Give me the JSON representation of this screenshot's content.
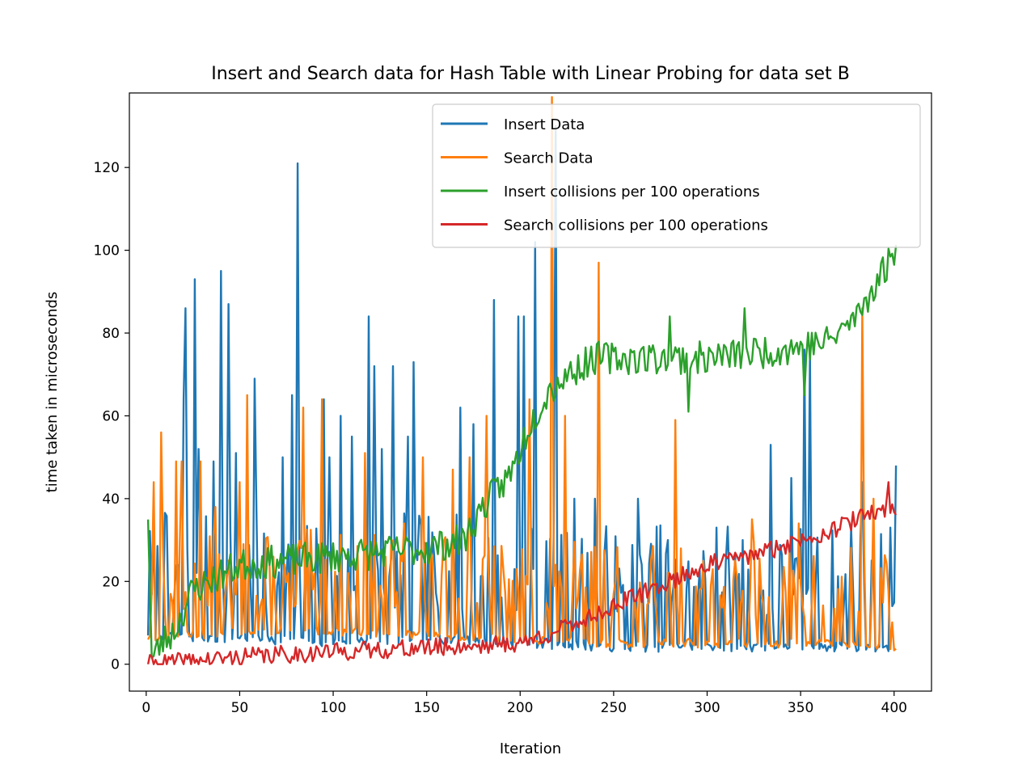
{
  "chart_data": {
    "type": "line",
    "title": "Insert and Search data for Hash Table with Linear Probing for data set B",
    "xlabel": "Iteration",
    "ylabel": "time taken in microseconds",
    "xlim": [
      -9,
      420
    ],
    "ylim": [
      -6.5,
      138
    ],
    "xticks": [
      0,
      50,
      100,
      150,
      200,
      250,
      300,
      350,
      400
    ],
    "yticks": [
      0,
      20,
      40,
      60,
      80,
      100,
      120
    ],
    "grid": false,
    "legend_position": "top-right",
    "series": [
      {
        "name": "Insert Data",
        "color": "#1f77b4",
        "style": "noise",
        "anchors": [
          [
            1,
            6
          ],
          [
            30,
            5
          ],
          [
            60,
            5
          ],
          [
            100,
            4
          ],
          [
            150,
            5
          ],
          [
            200,
            4
          ],
          [
            250,
            3
          ],
          [
            300,
            3
          ],
          [
            350,
            3
          ],
          [
            400,
            3
          ]
        ],
        "noise_amp": 20,
        "seed": 7,
        "spikes": [
          [
            20,
            64
          ],
          [
            21,
            86
          ],
          [
            26,
            93
          ],
          [
            28,
            52
          ],
          [
            36,
            49
          ],
          [
            40,
            95
          ],
          [
            44,
            87
          ],
          [
            48,
            51
          ],
          [
            58,
            69
          ],
          [
            73,
            50
          ],
          [
            78,
            65
          ],
          [
            81,
            121
          ],
          [
            95,
            64
          ],
          [
            98,
            50
          ],
          [
            104,
            60
          ],
          [
            110,
            55
          ],
          [
            119,
            84
          ],
          [
            122,
            72
          ],
          [
            126,
            52
          ],
          [
            132,
            72
          ],
          [
            140,
            55
          ],
          [
            143,
            73
          ],
          [
            168,
            62
          ],
          [
            175,
            58
          ],
          [
            186,
            88
          ],
          [
            199,
            84
          ],
          [
            202,
            84
          ],
          [
            208,
            102
          ],
          [
            219,
            130
          ],
          [
            229,
            40
          ],
          [
            240,
            40
          ],
          [
            263,
            40
          ],
          [
            279,
            30
          ],
          [
            305,
            33
          ],
          [
            319,
            30
          ],
          [
            334,
            53
          ],
          [
            345,
            45
          ],
          [
            352,
            76
          ],
          [
            355,
            76
          ],
          [
            377,
            33
          ],
          [
            383,
            44
          ],
          [
            398,
            33
          ],
          [
            401,
            48
          ]
        ]
      },
      {
        "name": "Search Data",
        "color": "#ff7f0e",
        "style": "noise",
        "anchors": [
          [
            1,
            5
          ],
          [
            50,
            7
          ],
          [
            100,
            7
          ],
          [
            150,
            6
          ],
          [
            200,
            5
          ],
          [
            250,
            4
          ],
          [
            300,
            4
          ],
          [
            350,
            4
          ],
          [
            400,
            3
          ]
        ],
        "noise_amp": 16,
        "seed": 13,
        "spikes": [
          [
            4,
            44
          ],
          [
            8,
            56
          ],
          [
            16,
            49
          ],
          [
            19,
            49
          ],
          [
            29,
            49
          ],
          [
            37,
            38
          ],
          [
            50,
            44
          ],
          [
            54,
            65
          ],
          [
            84,
            62
          ],
          [
            94,
            64
          ],
          [
            117,
            51
          ],
          [
            138,
            34
          ],
          [
            148,
            50
          ],
          [
            164,
            47
          ],
          [
            173,
            50
          ],
          [
            182,
            60
          ],
          [
            205,
            64
          ],
          [
            217,
            137
          ],
          [
            224,
            60
          ],
          [
            242,
            97
          ],
          [
            283,
            59
          ],
          [
            298,
            25
          ],
          [
            324,
            35
          ],
          [
            349,
            34
          ],
          [
            383,
            86
          ],
          [
            389,
            40
          ]
        ]
      },
      {
        "name": "Insert collisions per 100 operations",
        "color": "#2ca02c",
        "style": "noise",
        "anchors": [
          [
            1,
            37
          ],
          [
            3,
            1
          ],
          [
            8,
            5
          ],
          [
            15,
            8
          ],
          [
            25,
            18
          ],
          [
            50,
            24
          ],
          [
            100,
            26
          ],
          [
            150,
            28
          ],
          [
            170,
            30
          ],
          [
            180,
            38
          ],
          [
            195,
            46
          ],
          [
            205,
            58
          ],
          [
            215,
            66
          ],
          [
            225,
            70
          ],
          [
            240,
            74
          ],
          [
            300,
            74
          ],
          [
            340,
            76
          ],
          [
            365,
            78
          ],
          [
            380,
            84
          ],
          [
            390,
            92
          ],
          [
            401,
            100
          ]
        ],
        "noise_amp": 4,
        "seed": 23,
        "spikes": [
          [
            290,
            61
          ],
          [
            352,
            65
          ],
          [
            320,
            86
          ],
          [
            280,
            84
          ]
        ]
      },
      {
        "name": "Search collisions per 100 operations",
        "color": "#d62728",
        "style": "noise",
        "anchors": [
          [
            1,
            0
          ],
          [
            30,
            1
          ],
          [
            60,
            2
          ],
          [
            100,
            3
          ],
          [
            150,
            4
          ],
          [
            200,
            5
          ],
          [
            220,
            8
          ],
          [
            250,
            14
          ],
          [
            280,
            20
          ],
          [
            300,
            24
          ],
          [
            330,
            27
          ],
          [
            350,
            30
          ],
          [
            370,
            33
          ],
          [
            390,
            37
          ],
          [
            401,
            38
          ]
        ],
        "noise_amp": 2.2,
        "seed": 41,
        "spikes": [
          [
            397,
            44
          ]
        ]
      }
    ]
  }
}
